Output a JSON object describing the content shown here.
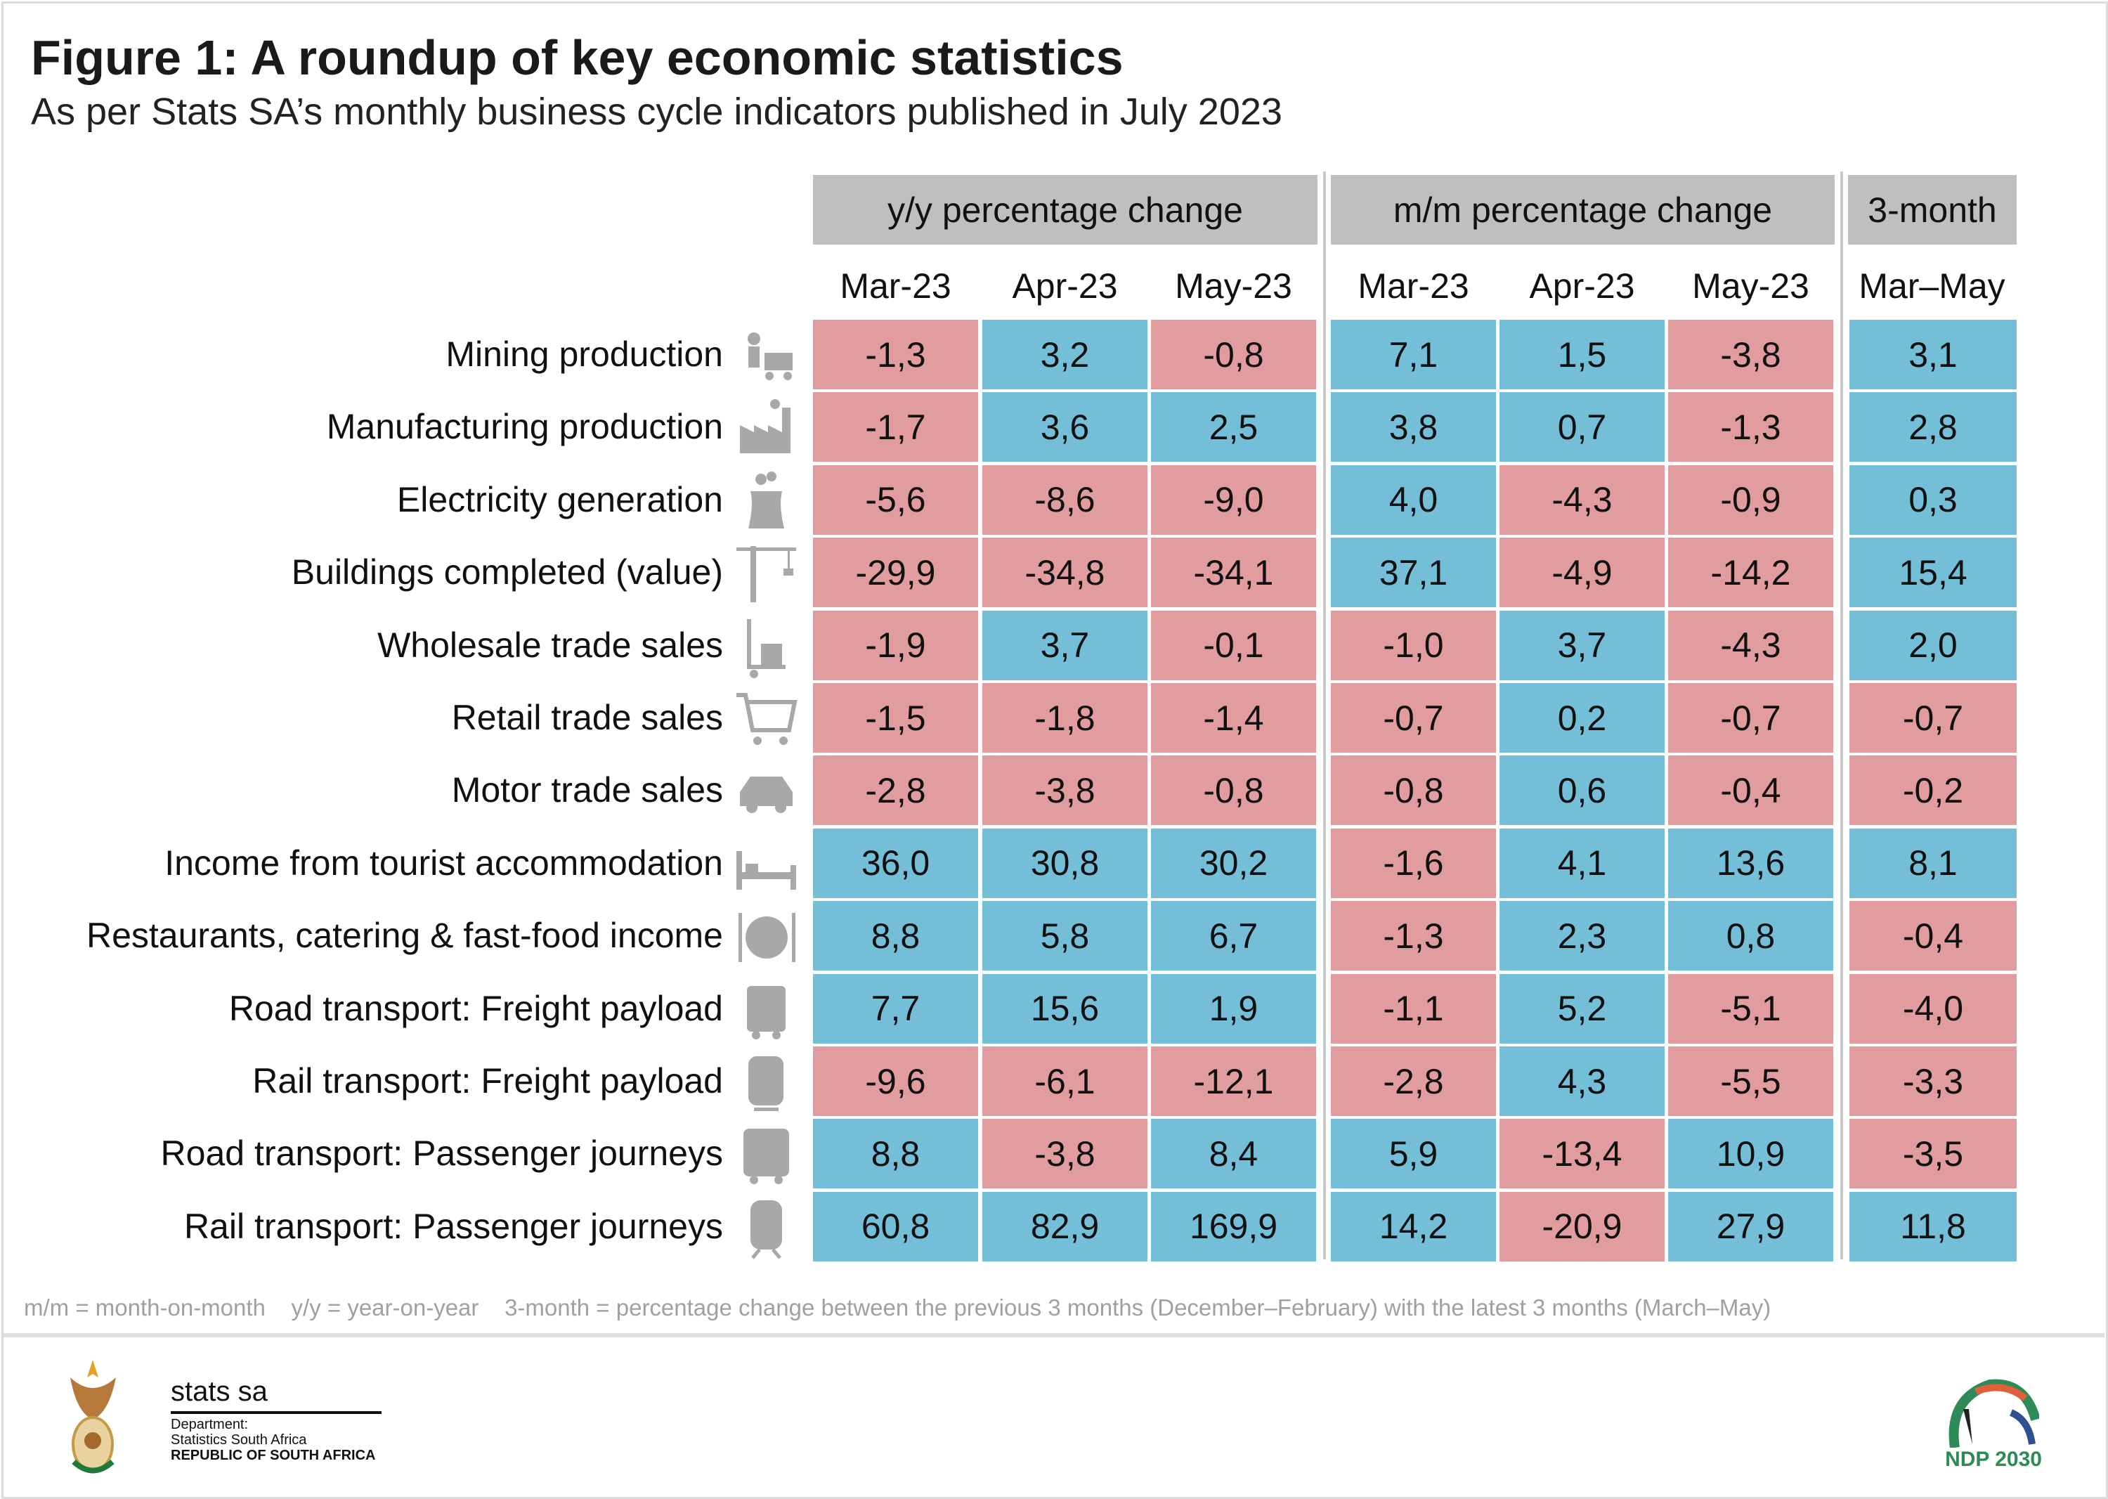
{
  "title": "Figure 1: A roundup of key economic statistics",
  "subtitle": "As per Stats SA’s monthly business cycle indicators published in July 2023",
  "chart_data": {
    "type": "table",
    "column_groups": [
      "y/y percentage change",
      "m/m percentage change",
      "3-month"
    ],
    "columns": [
      "Mar-23",
      "Apr-23",
      "May-23",
      "Mar-23",
      "Apr-23",
      "May-23",
      "Mar–May"
    ],
    "colors": {
      "negative": "#e09c9e",
      "positive": "#74bed8",
      "group_header": "#bfbfbf"
    },
    "rows": [
      {
        "label": "Mining production",
        "icon": "miner-icon",
        "values": [
          "-1,3",
          "3,2",
          "-0,8",
          "7,1",
          "1,5",
          "-3,8",
          "3,1"
        ]
      },
      {
        "label": "Manufacturing production",
        "icon": "factory-icon",
        "values": [
          "-1,7",
          "3,6",
          "2,5",
          "3,8",
          "0,7",
          "-1,3",
          "2,8"
        ]
      },
      {
        "label": "Electricity generation",
        "icon": "power-station-icon",
        "values": [
          "-5,6",
          "-8,6",
          "-9,0",
          "4,0",
          "-4,3",
          "-0,9",
          "0,3"
        ]
      },
      {
        "label": "Buildings completed (value)",
        "icon": "crane-icon",
        "values": [
          "-29,9",
          "-34,8",
          "-34,1",
          "37,1",
          "-4,9",
          "-14,2",
          "15,4"
        ]
      },
      {
        "label": "Wholesale trade sales",
        "icon": "hand-truck-icon",
        "values": [
          "-1,9",
          "3,7",
          "-0,1",
          "-1,0",
          "3,7",
          "-4,3",
          "2,0"
        ]
      },
      {
        "label": "Retail trade sales",
        "icon": "shopping-cart-icon",
        "values": [
          "-1,5",
          "-1,8",
          "-1,4",
          "-0,7",
          "0,2",
          "-0,7",
          "-0,7"
        ]
      },
      {
        "label": "Motor trade sales",
        "icon": "car-icon",
        "values": [
          "-2,8",
          "-3,8",
          "-0,8",
          "-0,8",
          "0,6",
          "-0,4",
          "-0,2"
        ]
      },
      {
        "label": "Income from tourist accommodation",
        "icon": "bed-icon",
        "values": [
          "36,0",
          "30,8",
          "30,2",
          "-1,6",
          "4,1",
          "13,6",
          "8,1"
        ]
      },
      {
        "label": "Restaurants, catering & fast-food income",
        "icon": "plate-cutlery-icon",
        "values": [
          "8,8",
          "5,8",
          "6,7",
          "-1,3",
          "2,3",
          "0,8",
          "-0,4"
        ]
      },
      {
        "label": "Road transport: Freight payload",
        "icon": "truck-icon",
        "values": [
          "7,7",
          "15,6",
          "1,9",
          "-1,1",
          "5,2",
          "-5,1",
          "-4,0"
        ]
      },
      {
        "label": "Rail transport: Freight payload",
        "icon": "locomotive-icon",
        "values": [
          "-9,6",
          "-6,1",
          "-12,1",
          "-2,8",
          "4,3",
          "-5,5",
          "-3,3"
        ]
      },
      {
        "label": "Road transport: Passenger journeys",
        "icon": "bus-icon",
        "values": [
          "8,8",
          "-3,8",
          "8,4",
          "5,9",
          "-13,4",
          "10,9",
          "-3,5"
        ]
      },
      {
        "label": "Rail transport: Passenger journeys",
        "icon": "train-icon",
        "values": [
          "60,8",
          "82,9",
          "169,9",
          "14,2",
          "-20,9",
          "27,9",
          "11,8"
        ]
      }
    ]
  },
  "footnote": "m/m = month-on-month    y/y = year-on-year    3-month = percentage change between the previous 3 months (December–February) with the latest 3 months (March–May)",
  "footer": {
    "brand": "stats sa",
    "dept_line1": "Department:",
    "dept_line2": "Statistics South Africa",
    "dept_line3": "REPUBLIC OF SOUTH AFRICA",
    "ndp_logo_text": "NDP 2030"
  }
}
